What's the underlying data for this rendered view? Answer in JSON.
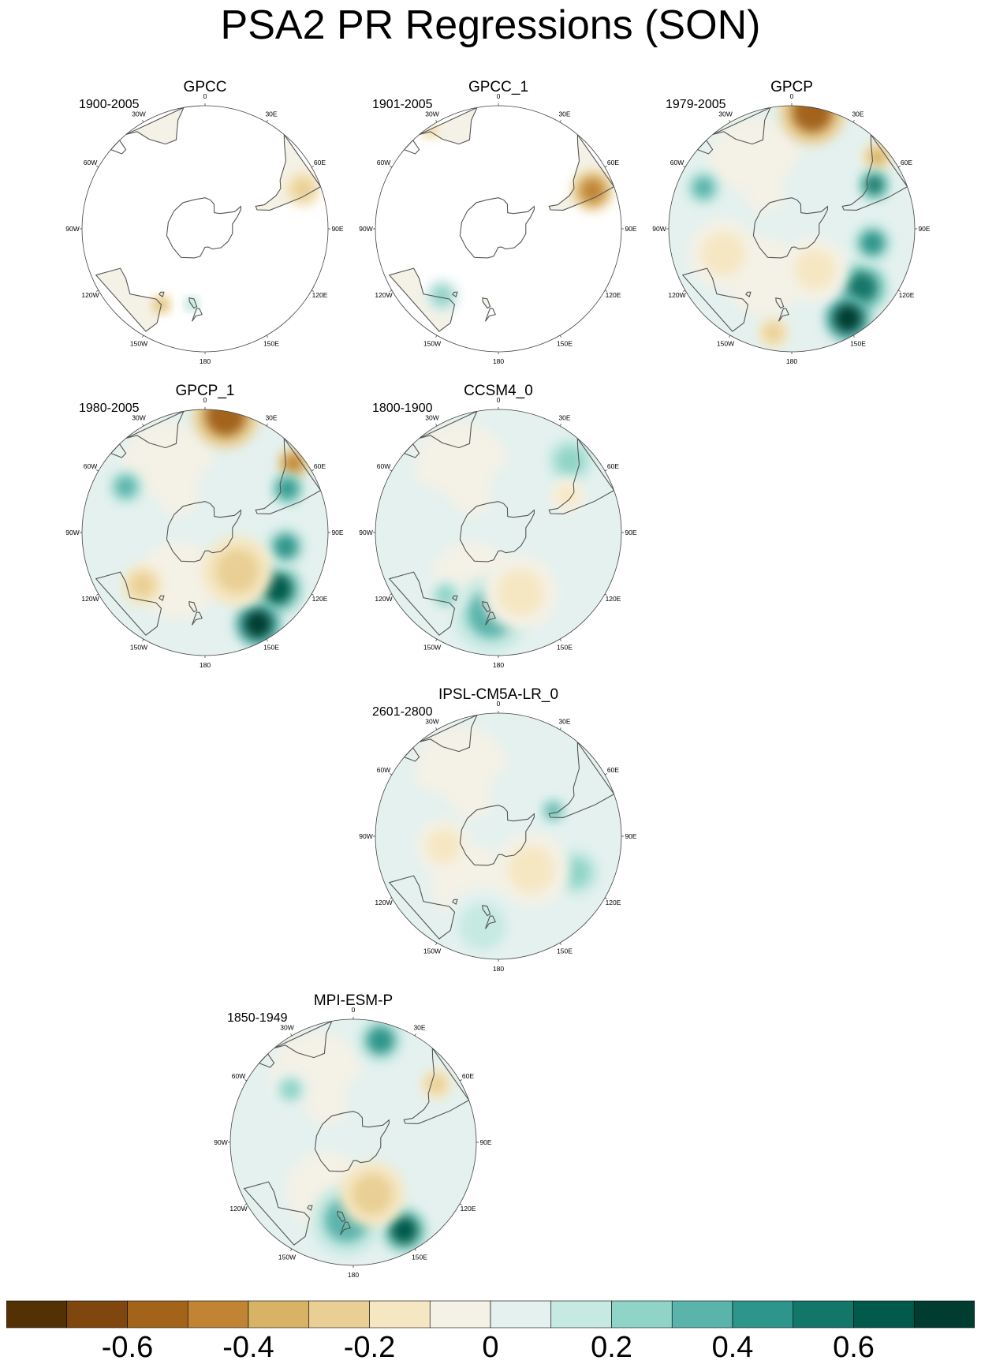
{
  "figure": {
    "title": "PSA2 PR Regressions (SON)"
  },
  "panels": [
    {
      "id": "gpcc",
      "title": "GPCC",
      "period": "1900-2005",
      "coverage": "land-only",
      "features": [
        {
          "lon": -68,
          "lat": -28,
          "v": -0.25,
          "r": 14
        },
        {
          "lon": 150,
          "lat": -37,
          "v": -0.35,
          "r": 8
        },
        {
          "lon": 170,
          "lat": -43,
          "v": 0.2,
          "r": 6
        }
      ]
    },
    {
      "id": "gpcc1",
      "title": "GPCC_1",
      "period": "1901-2005",
      "coverage": "land-only",
      "features": [
        {
          "lon": -68,
          "lat": -30,
          "v": -0.5,
          "r": 16
        },
        {
          "lon": 140,
          "lat": -37,
          "v": 0.2,
          "r": 14
        },
        {
          "lon": 35,
          "lat": -22,
          "v": -0.3,
          "r": 6
        }
      ]
    },
    {
      "id": "gpcp",
      "title": "GPCP",
      "period": "1979-2005",
      "coverage": "global",
      "features": [
        {
          "lon": -10,
          "lat": -22,
          "v": -0.55,
          "r": 26
        },
        {
          "lon": -50,
          "lat": -25,
          "v": -0.4,
          "r": 12
        },
        {
          "lon": -62,
          "lat": -34,
          "v": 0.5,
          "r": 12
        },
        {
          "lon": -130,
          "lat": -35,
          "v": 0.55,
          "r": 20
        },
        {
          "lon": -148,
          "lat": -28,
          "v": 0.75,
          "r": 18
        },
        {
          "lon": -100,
          "lat": -40,
          "v": 0.4,
          "r": 16
        },
        {
          "lon": 65,
          "lat": -32,
          "v": 0.3,
          "r": 14
        },
        {
          "lon": 110,
          "lat": -45,
          "v": -0.2,
          "r": 28
        },
        {
          "lon": -150,
          "lat": -60,
          "v": -0.2,
          "r": 26
        },
        {
          "lon": 170,
          "lat": -28,
          "v": -0.3,
          "r": 12
        }
      ]
    },
    {
      "id": "gpcp1",
      "title": "GPCP_1",
      "period": "1980-2005",
      "coverage": "global",
      "features": [
        {
          "lon": -10,
          "lat": -22,
          "v": -0.55,
          "r": 26
        },
        {
          "lon": -52,
          "lat": -25,
          "v": -0.45,
          "r": 12
        },
        {
          "lon": -62,
          "lat": -34,
          "v": 0.45,
          "r": 12
        },
        {
          "lon": -128,
          "lat": -35,
          "v": 0.6,
          "r": 20
        },
        {
          "lon": -150,
          "lat": -28,
          "v": 0.75,
          "r": 18
        },
        {
          "lon": -100,
          "lat": -40,
          "v": 0.4,
          "r": 16
        },
        {
          "lon": 60,
          "lat": -35,
          "v": 0.3,
          "r": 14
        },
        {
          "lon": 130,
          "lat": -40,
          "v": -0.25,
          "r": 16
        },
        {
          "lon": -140,
          "lat": -58,
          "v": -0.25,
          "r": 28
        }
      ]
    },
    {
      "id": "ccsm4",
      "title": "CCSM4_0",
      "period": "1800-1900",
      "coverage": "global",
      "features": [
        {
          "lon": -45,
          "lat": -30,
          "v": 0.25,
          "r": 18
        },
        {
          "lon": 175,
          "lat": -40,
          "v": 0.35,
          "r": 30
        },
        {
          "lon": 140,
          "lat": -40,
          "v": 0.2,
          "r": 14
        },
        {
          "lon": -160,
          "lat": -50,
          "v": -0.15,
          "r": 30
        },
        {
          "lon": -62,
          "lat": -42,
          "v": -0.2,
          "r": 14
        }
      ]
    },
    {
      "id": "ipsl",
      "title": "IPSL-CM5A-LR_0",
      "period": "2601-2800",
      "coverage": "global",
      "features": [
        {
          "lon": -115,
          "lat": -38,
          "v": 0.25,
          "r": 18
        },
        {
          "lon": -65,
          "lat": -52,
          "v": 0.35,
          "r": 10
        },
        {
          "lon": -135,
          "lat": -60,
          "v": -0.15,
          "r": 30
        },
        {
          "lon": 100,
          "lat": -55,
          "v": -0.2,
          "r": 22
        },
        {
          "lon": 170,
          "lat": -35,
          "v": 0.12,
          "r": 30
        }
      ]
    },
    {
      "id": "mpi",
      "title": "MPI-ESM-P",
      "period": "1850-1949",
      "coverage": "global",
      "features": [
        {
          "lon": -15,
          "lat": -28,
          "v": 0.4,
          "r": 18
        },
        {
          "lon": -55,
          "lat": -30,
          "v": -0.3,
          "r": 12
        },
        {
          "lon": -150,
          "lat": -30,
          "v": 0.65,
          "r": 18
        },
        {
          "lon": 175,
          "lat": -42,
          "v": 0.35,
          "r": 28
        },
        {
          "lon": -160,
          "lat": -55,
          "v": -0.25,
          "r": 26
        },
        {
          "lon": 50,
          "lat": -40,
          "v": 0.2,
          "r": 14
        }
      ]
    }
  ],
  "map": {
    "projection": "south-polar-stereographic",
    "lat_boundary": -20,
    "lon_labels": [
      "0",
      "30E",
      "60E",
      "90E",
      "120E",
      "150E",
      "180",
      "150W",
      "120W",
      "90W",
      "60W",
      "30W"
    ]
  },
  "colorbar": {
    "boundaries": [
      -0.8,
      -0.7,
      -0.6,
      -0.5,
      -0.4,
      -0.3,
      -0.2,
      -0.1,
      0,
      0.1,
      0.2,
      0.3,
      0.4,
      0.5,
      0.6,
      0.7,
      0.8
    ],
    "colors": [
      "#543005",
      "#7f460d",
      "#a3641a",
      "#c08434",
      "#d8b365",
      "#e9cf94",
      "#f6e7c3",
      "#f4f1e6",
      "#e4f1ef",
      "#c6e9e2",
      "#90d4c8",
      "#5ab4ac",
      "#2d958b",
      "#127669",
      "#015a4c",
      "#003c30"
    ],
    "tick_labels": [
      "-0.6",
      "-0.4",
      "-0.2",
      "0",
      "0.2",
      "0.4",
      "0.6"
    ],
    "tick_values": [
      -0.6,
      -0.4,
      -0.2,
      0,
      0.2,
      0.4,
      0.6
    ]
  }
}
